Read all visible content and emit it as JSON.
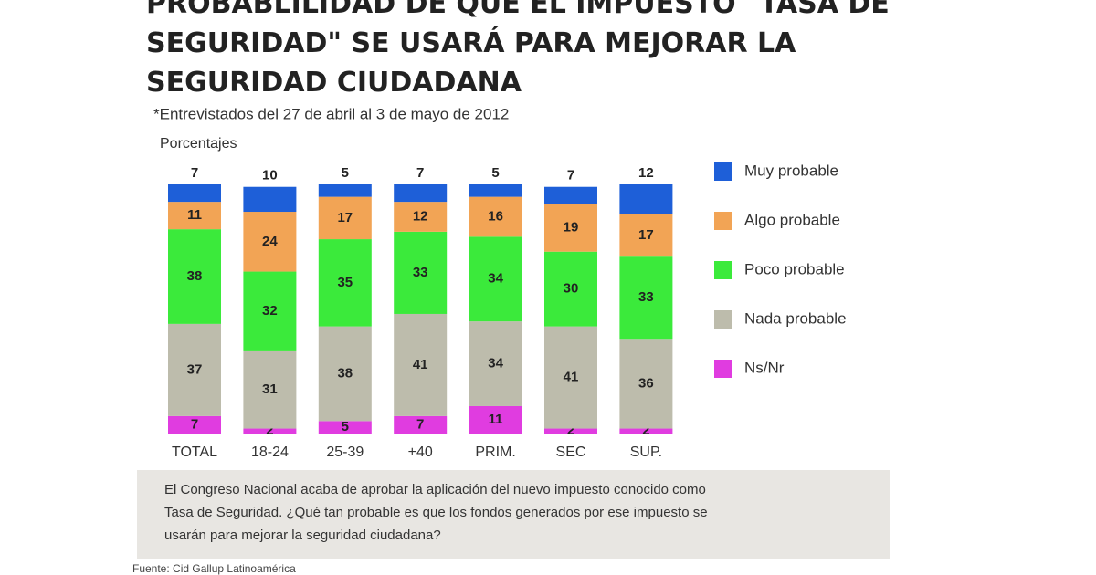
{
  "chart_data": {
    "type": "stacked_bar",
    "title": [
      "PROBABLILIDAD DE QUE EL IMPUESTO \"TASA DE",
      "SEGURIDAD\" SE USARÁ PARA MEJORAR LA",
      "SEGURIDAD CIUDADANA"
    ],
    "subtitle": "*Entrevistados del 27 de abril al 3 de mayo de 2012",
    "unit_label": "Porcentajes",
    "categories": [
      "TOTAL",
      "18-24",
      "25-39",
      "+40",
      "PRIM.",
      "SEC",
      "SUP."
    ],
    "series": [
      {
        "name": "Ns/Nr",
        "color": "#e03ce0",
        "values": [
          7,
          2,
          5,
          7,
          11,
          2,
          2
        ]
      },
      {
        "name": "Nada probable",
        "color": "#bdbcac",
        "values": [
          37,
          31,
          38,
          41,
          34,
          41,
          36
        ]
      },
      {
        "name": "Poco probable",
        "color": "#3bea3b",
        "values": [
          38,
          32,
          35,
          33,
          34,
          30,
          33
        ]
      },
      {
        "name": "Algo probable",
        "color": "#f2a455",
        "values": [
          11,
          24,
          17,
          12,
          16,
          19,
          17
        ]
      },
      {
        "name": "Muy probable",
        "color": "#1e5fd8",
        "values": [
          7,
          10,
          5,
          7,
          5,
          7,
          12
        ]
      }
    ],
    "note": [
      "El Congreso Nacional acaba de aprobar la aplicación del nuevo impuesto conocido como",
      "Tasa de Seguridad. ¿Qué tan probable es que los fondos generados por ese impuesto se",
      "usarán para mejorar la seguridad ciudadana?"
    ],
    "source": "Fuente: Cid Gallup Latinoamérica"
  }
}
